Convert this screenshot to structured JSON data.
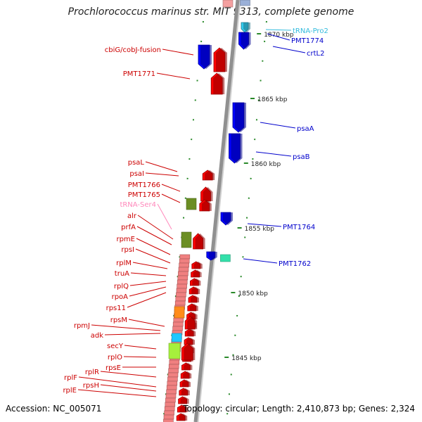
{
  "title": "Prochlorococcus marinus str. MIT 9313, complete genome",
  "footer": {
    "accession": "Accession: NC_005071",
    "summary": "Topology: circular; Length: 2,410,873 bp; Genes: 2,324"
  },
  "colors": {
    "forward_gene": "#ff0000",
    "reverse_gene": "#0000ff",
    "trna": "#33ccee",
    "trna_forward": "#ff88bb",
    "ribosomal_block": "#f08080",
    "olive": "#6b8e23",
    "lime": "#a6f03c",
    "orange": "#ff8c1a",
    "sky": "#1ec8ff",
    "teal": "#33e0aa",
    "backbone": "#909090",
    "tick": "#2a8a2a"
  },
  "scale": {
    "ticks": [
      {
        "label": "1870 kbp",
        "kbp": 1870
      },
      {
        "label": "1865 kbp",
        "kbp": 1865
      },
      {
        "label": "1860 kbp",
        "kbp": 1860
      },
      {
        "label": "1855 kbp",
        "kbp": 1855
      },
      {
        "label": "1850 kbp",
        "kbp": 1850
      },
      {
        "label": "1845 kbp",
        "kbp": 1845
      }
    ]
  },
  "labels_left": [
    {
      "text": "cbiG/cobJ-fusion",
      "color": "red"
    },
    {
      "text": "PMT1771",
      "color": "red"
    },
    {
      "text": "psaL",
      "color": "red"
    },
    {
      "text": "psaI",
      "color": "red"
    },
    {
      "text": "PMT1766",
      "color": "red"
    },
    {
      "text": "PMT1765",
      "color": "red"
    },
    {
      "text": "tRNA-Ser4",
      "color": "pink"
    },
    {
      "text": "alr",
      "color": "red"
    },
    {
      "text": "prfA",
      "color": "red"
    },
    {
      "text": "rpmE",
      "color": "red"
    },
    {
      "text": "rpsI",
      "color": "red"
    },
    {
      "text": "rplM",
      "color": "red"
    },
    {
      "text": "truA",
      "color": "red"
    },
    {
      "text": "rplQ",
      "color": "red"
    },
    {
      "text": "rpoA",
      "color": "red"
    },
    {
      "text": "rps11",
      "color": "red"
    },
    {
      "text": "rpsM",
      "color": "red"
    },
    {
      "text": "rpmJ",
      "color": "red"
    },
    {
      "text": "adk",
      "color": "red"
    },
    {
      "text": "secY",
      "color": "red"
    },
    {
      "text": "rplO",
      "color": "red"
    },
    {
      "text": "rpsE",
      "color": "red"
    },
    {
      "text": "rplR",
      "color": "red"
    },
    {
      "text": "rplF",
      "color": "red"
    },
    {
      "text": "rpsH",
      "color": "red"
    },
    {
      "text": "rplE",
      "color": "red"
    }
  ],
  "labels_right": [
    {
      "text": "tRNA-Pro2",
      "color": "cyan"
    },
    {
      "text": "PMT1774",
      "color": "blue"
    },
    {
      "text": "crtL2",
      "color": "blue"
    },
    {
      "text": "psaA",
      "color": "blue"
    },
    {
      "text": "psaB",
      "color": "blue"
    },
    {
      "text": "PMT1764",
      "color": "blue"
    },
    {
      "text": "PMT1762",
      "color": "blue"
    }
  ]
}
